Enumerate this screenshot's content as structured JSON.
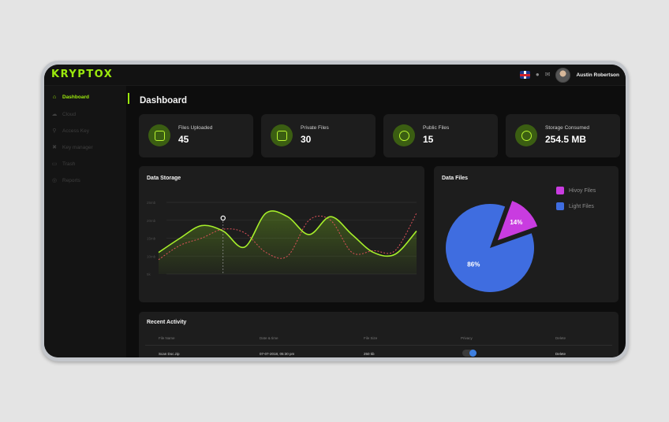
{
  "app": {
    "logo": "KRYPTOX",
    "user_name": "Austin Robertson"
  },
  "topbar_icons": [
    "uk-flag-icon",
    "bell-icon",
    "mail-icon",
    "avatar"
  ],
  "sidebar": {
    "items": [
      {
        "label": "Dashboard",
        "icon": "home-icon",
        "active": true
      },
      {
        "label": "Cloud",
        "icon": "cloud-icon",
        "active": false
      },
      {
        "label": "Access Key",
        "icon": "key-icon",
        "active": false
      },
      {
        "label": "Key manager",
        "icon": "cross-key-icon",
        "active": false
      },
      {
        "label": "Trash",
        "icon": "trash-icon",
        "active": false
      },
      {
        "label": "Reports",
        "icon": "reports-icon",
        "active": false
      }
    ]
  },
  "page": {
    "title": "Dashboard"
  },
  "cards": [
    {
      "label": "Files Uploaded",
      "value": "45",
      "icon": "upload-cloud-icon"
    },
    {
      "label": "Private Files",
      "value": "30",
      "icon": "private-file-icon"
    },
    {
      "label": "Public Files",
      "value": "15",
      "icon": "users-icon"
    },
    {
      "label": "Storage Consumed",
      "value": "254.5 MB",
      "icon": "pie-icon"
    }
  ],
  "colors": {
    "accent": "#9be80d",
    "pie_heavy": "#c93ce0",
    "pie_light": "#3f6de0",
    "line_red": "#e0525a"
  },
  "chart_data": [
    {
      "type": "line",
      "title": "Data Storage",
      "ytick_labels": [
        "25mb",
        "20mb",
        "15mb",
        "10mb",
        "5k"
      ],
      "series": [
        {
          "values": [
            11,
            15,
            18.5,
            17,
            12.5,
            22,
            21,
            16,
            21,
            16,
            11,
            10.5,
            17
          ]
        },
        {
          "values": [
            9,
            13,
            15,
            17.5,
            16.5,
            11,
            10,
            20,
            20,
            11,
            11.5,
            11.5,
            22
          ]
        }
      ]
    },
    {
      "type": "pie",
      "title": "Data Files",
      "slices": [
        {
          "label": "Hivoy Files",
          "value": 14,
          "display": "14%"
        },
        {
          "label": "Light Files",
          "value": 86,
          "display": "86%"
        }
      ]
    }
  ],
  "recent_activity": {
    "title": "Recent Activity",
    "columns": [
      "File Name",
      "Date & time",
      "File Size",
      "Privacy",
      "Delete"
    ],
    "rows": [
      {
        "file_name": "Scan Doc.zip",
        "date_time": "07-07-2018, 05:30 pm",
        "file_size": "250 kb",
        "privacy_on": true,
        "delete": "Delete"
      }
    ]
  }
}
